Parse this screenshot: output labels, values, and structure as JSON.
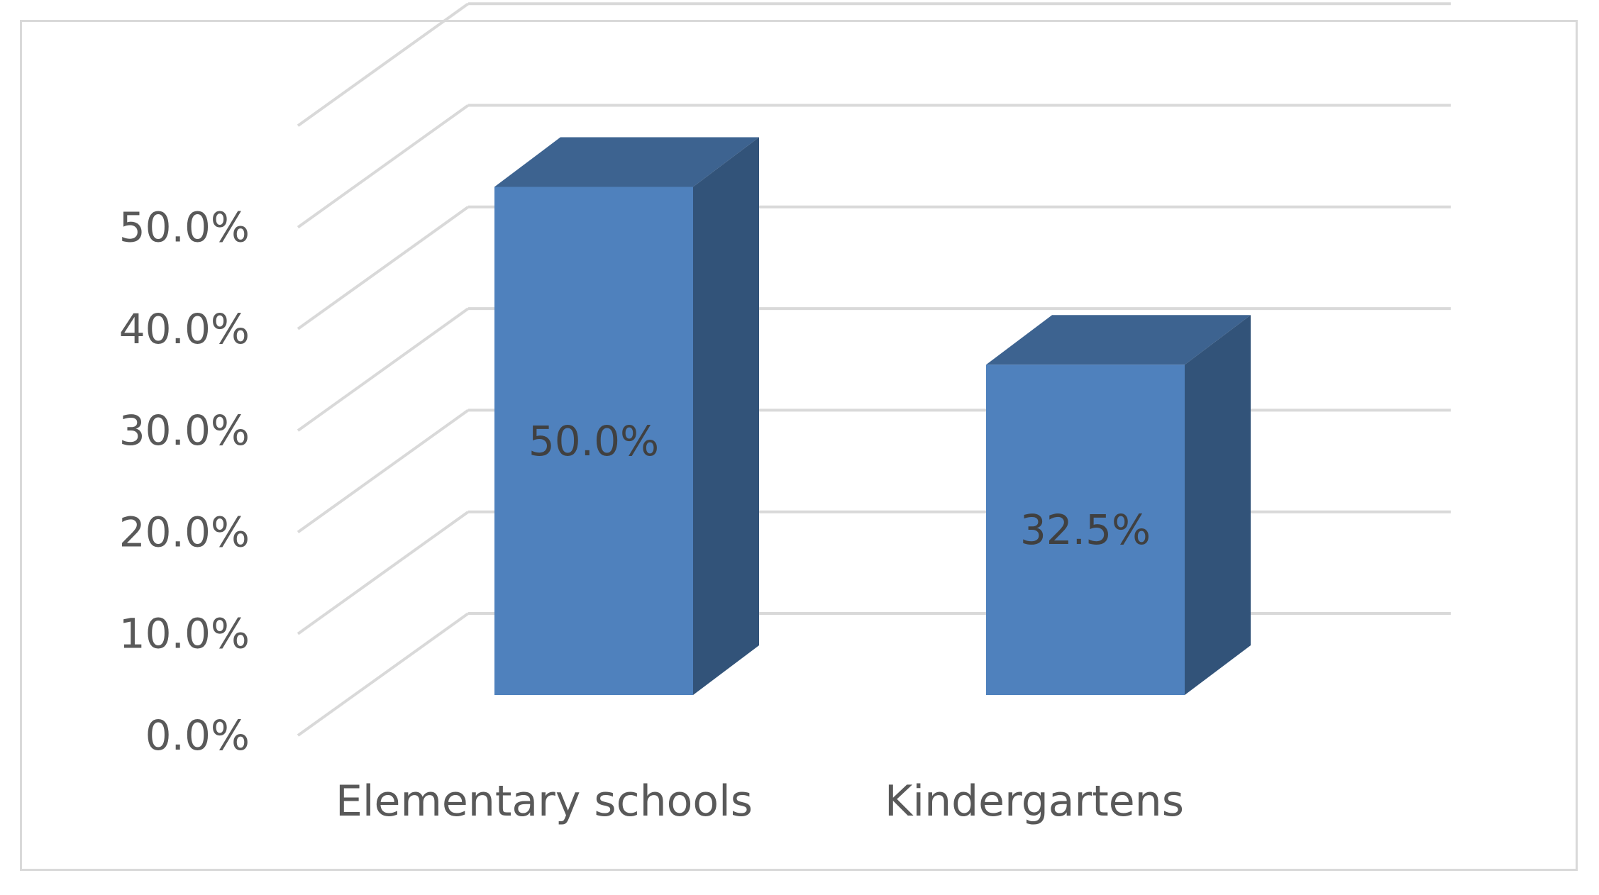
{
  "chart_data": {
    "type": "bar",
    "style": "3d-column",
    "title": "",
    "xlabel": "",
    "ylabel": "",
    "categories": [
      "Elementary schools",
      "Kindergartens"
    ],
    "values": [
      50.0,
      32.5
    ],
    "data_labels": [
      "50.0%",
      "32.5%"
    ],
    "ylim": [
      0,
      50
    ],
    "yticks": [
      0,
      10,
      20,
      30,
      40,
      50
    ],
    "ytick_labels": [
      "0.0%",
      "10.0%",
      "20.0%",
      "30.0%",
      "40.0%",
      "50.0%"
    ],
    "grid": true,
    "legend": "none",
    "colors": {
      "bar_front": "#4f81bd",
      "bar_top": "#3d6390",
      "bar_side": "#325379",
      "grid": "#d9d9d9",
      "frame": "#d9d9d9"
    }
  }
}
